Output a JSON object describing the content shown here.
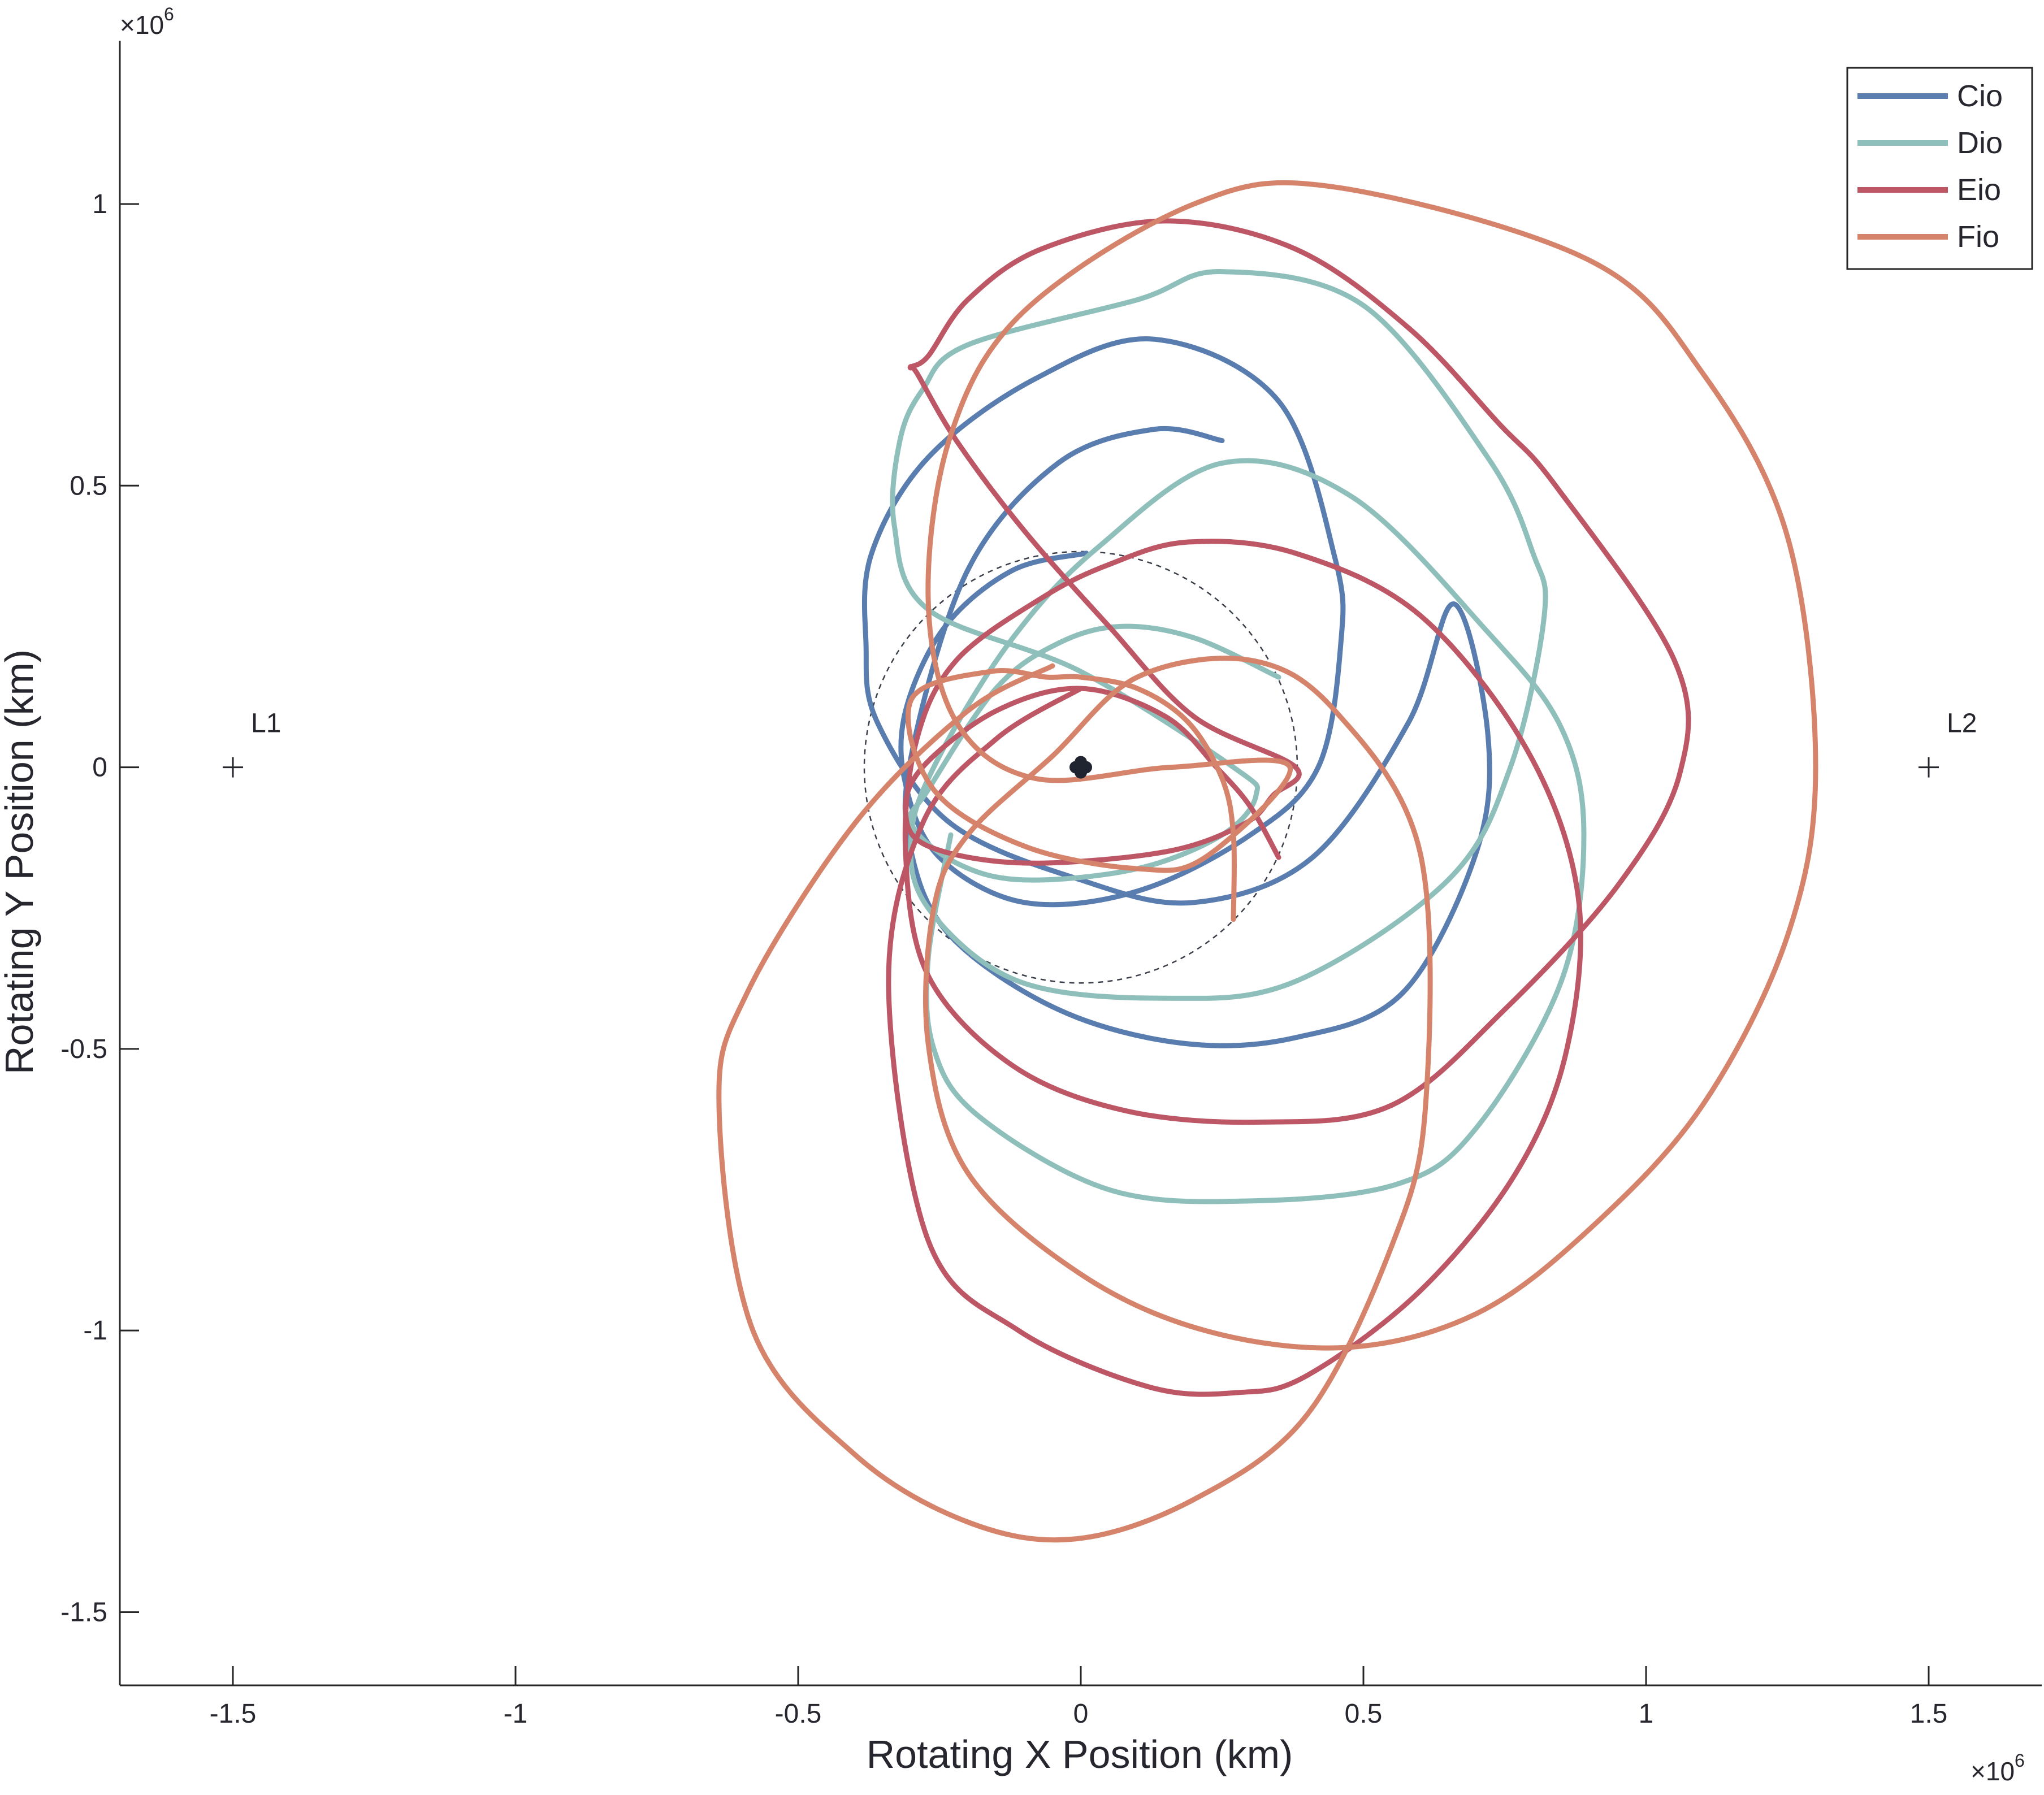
{
  "chart_data": {
    "type": "line",
    "title": "",
    "xlabel": "Rotating X Position (km)",
    "ylabel": "Rotating Y Position (km)",
    "x_exponent_label": "×10",
    "x_exponent_power": "6",
    "y_exponent_label": "×10",
    "y_exponent_power": "6",
    "scale": 1000000,
    "xlim": [
      -1.7,
      1.7
    ],
    "ylim": [
      -1.63,
      1.29
    ],
    "xticks": [
      -1.5,
      -1,
      -0.5,
      0,
      0.5,
      1,
      1.5
    ],
    "xtick_labels": [
      "-1.5",
      "-1",
      "-0.5",
      "0",
      "0.5",
      "1",
      "1.5"
    ],
    "yticks": [
      -1.5,
      -1,
      -0.5,
      0,
      0.5,
      1
    ],
    "ytick_labels": [
      "-1.5",
      "-1",
      "-0.5",
      "0",
      "0.5",
      "1"
    ],
    "grid": false,
    "legend_position": "top-right",
    "points": [
      {
        "name": "L1",
        "x": -1.5,
        "y": 0
      },
      {
        "name": "L2",
        "x": 1.5,
        "y": 0
      }
    ],
    "central_body": {
      "x": 0,
      "y": 0
    },
    "reference_circle": {
      "cx": 0,
      "cy": 0,
      "r": 0.383
    },
    "series": [
      {
        "name": "Cio",
        "color": "#5a7db0",
        "x": [
          0.01,
          -0.12,
          -0.24,
          -0.31,
          -0.31,
          -0.25,
          -0.1,
          0.1,
          0.3,
          0.42,
          0.46,
          0.45,
          0.35,
          0.13,
          -0.08,
          -0.27,
          -0.37,
          -0.38,
          -0.36,
          -0.23,
          0.0,
          0.2,
          0.41,
          0.58,
          0.66,
          0.72,
          0.7,
          0.57,
          0.38,
          0.18,
          -0.04,
          -0.23,
          -0.3,
          -0.3,
          -0.2,
          -0.04,
          0.13,
          0.25
        ],
        "y": [
          0.38,
          0.35,
          0.25,
          0.1,
          -0.03,
          -0.16,
          -0.24,
          -0.22,
          -0.12,
          0.0,
          0.22,
          0.37,
          0.65,
          0.76,
          0.69,
          0.55,
          0.38,
          0.22,
          0.08,
          -0.1,
          -0.2,
          -0.24,
          -0.16,
          0.08,
          0.29,
          0.06,
          -0.15,
          -0.4,
          -0.48,
          -0.49,
          -0.43,
          -0.3,
          -0.15,
          0.02,
          0.35,
          0.54,
          0.6,
          0.58
        ]
      },
      {
        "name": "Dio",
        "color": "#8fbfbb",
        "x": [
          0.35,
          0.2,
          0.07,
          -0.04,
          -0.15,
          -0.27,
          -0.3,
          -0.22,
          -0.1,
          0.1,
          0.25,
          0.31,
          0.27,
          0.0,
          -0.27,
          -0.33,
          -0.32,
          -0.28,
          -0.2,
          0.1,
          0.25,
          0.5,
          0.72,
          0.8,
          0.82,
          0.76,
          0.65,
          0.38,
          0.15,
          -0.11,
          -0.27,
          -0.3,
          -0.25,
          -0.12,
          0.03,
          0.25,
          0.48,
          0.72,
          0.85,
          0.89,
          0.85,
          0.7,
          0.56,
          0.3,
          0.05,
          -0.18,
          -0.26,
          -0.27,
          -0.23
        ],
        "y": [
          0.16,
          0.23,
          0.25,
          0.22,
          0.14,
          -0.04,
          -0.1,
          -0.17,
          -0.2,
          -0.18,
          -0.12,
          -0.05,
          0.0,
          0.17,
          0.28,
          0.43,
          0.58,
          0.67,
          0.75,
          0.83,
          0.88,
          0.82,
          0.55,
          0.38,
          0.27,
          0.0,
          -0.2,
          -0.38,
          -0.41,
          -0.38,
          -0.25,
          -0.12,
          0.02,
          0.23,
          0.39,
          0.54,
          0.48,
          0.24,
          0.07,
          -0.12,
          -0.38,
          -0.64,
          -0.74,
          -0.77,
          -0.75,
          -0.62,
          -0.5,
          -0.34,
          -0.12
        ]
      },
      {
        "name": "Eio",
        "color": "#bd5766",
        "x": [
          0.35,
          0.3,
          0.24,
          0.15,
          0.0,
          -0.15,
          -0.28,
          -0.31,
          -0.27,
          -0.1,
          0.15,
          0.29,
          0.34,
          0.38,
          0.2,
          0.05,
          -0.1,
          -0.22,
          -0.29,
          -0.3,
          -0.27,
          -0.2,
          -0.07,
          0.15,
          0.38,
          0.58,
          0.74,
          0.84,
          1.05,
          1.06,
          0.95,
          0.75,
          0.55,
          0.32,
          0.08,
          -0.12,
          -0.27,
          -0.31,
          -0.29,
          -0.22,
          -0.07,
          0.05,
          0.19,
          0.38,
          0.6,
          0.79,
          0.88,
          0.86,
          0.77,
          0.6,
          0.4,
          0.28,
          0.12,
          -0.11,
          -0.27,
          -0.34,
          -0.28,
          -0.15,
          0.0
        ],
        "y": [
          -0.16,
          -0.07,
          0.0,
          0.09,
          0.14,
          0.1,
          0.0,
          -0.08,
          -0.14,
          -0.17,
          -0.15,
          -0.1,
          -0.05,
          0.0,
          0.09,
          0.25,
          0.42,
          0.58,
          0.7,
          0.71,
          0.73,
          0.83,
          0.92,
          0.97,
          0.92,
          0.78,
          0.61,
          0.5,
          0.19,
          -0.01,
          -0.21,
          -0.43,
          -0.6,
          -0.63,
          -0.61,
          -0.53,
          -0.37,
          -0.15,
          0.05,
          0.19,
          0.3,
          0.36,
          0.4,
          0.38,
          0.27,
          0.03,
          -0.23,
          -0.5,
          -0.72,
          -0.93,
          -1.08,
          -1.11,
          -1.1,
          -1.0,
          -0.84,
          -0.39,
          -0.1,
          0.05,
          0.14
        ]
      },
      {
        "name": "Fio",
        "color": "#d5836a",
        "x": [
          0.27,
          0.27,
          0.25,
          0.19,
          0.1,
          0.0,
          -0.06,
          -0.16,
          -0.3,
          -0.26,
          -0.1,
          0.1,
          0.22,
          0.37,
          0.16,
          -0.08,
          -0.22,
          -0.27,
          -0.23,
          -0.1,
          0.2,
          0.45,
          0.9,
          1.1,
          1.25,
          1.3,
          1.25,
          1.1,
          0.9,
          0.7,
          0.47,
          0.22,
          0.0,
          -0.2,
          -0.27,
          -0.26,
          -0.2,
          -0.05,
          0.1,
          0.3,
          0.45,
          0.6,
          0.61,
          0.55,
          0.4,
          0.2,
          -0.01,
          -0.2,
          -0.4,
          -0.58,
          -0.64,
          -0.59,
          -0.4,
          -0.2,
          -0.05
        ],
        "y": [
          -0.27,
          -0.12,
          -0.02,
          0.08,
          0.14,
          0.16,
          0.16,
          0.17,
          0.12,
          -0.04,
          -0.14,
          -0.18,
          -0.16,
          -0.0,
          0.0,
          -0.02,
          0.08,
          0.3,
          0.59,
          0.81,
          1.0,
          1.03,
          0.9,
          0.7,
          0.41,
          0.0,
          -0.3,
          -0.6,
          -0.82,
          -0.97,
          -1.03,
          -1.0,
          -0.9,
          -0.72,
          -0.49,
          -0.25,
          -0.12,
          0.02,
          0.16,
          0.19,
          0.1,
          -0.15,
          -0.6,
          -0.85,
          -1.15,
          -1.3,
          -1.37,
          -1.34,
          -1.22,
          -1.0,
          -0.6,
          -0.4,
          -0.1,
          0.1,
          0.18
        ]
      }
    ]
  }
}
